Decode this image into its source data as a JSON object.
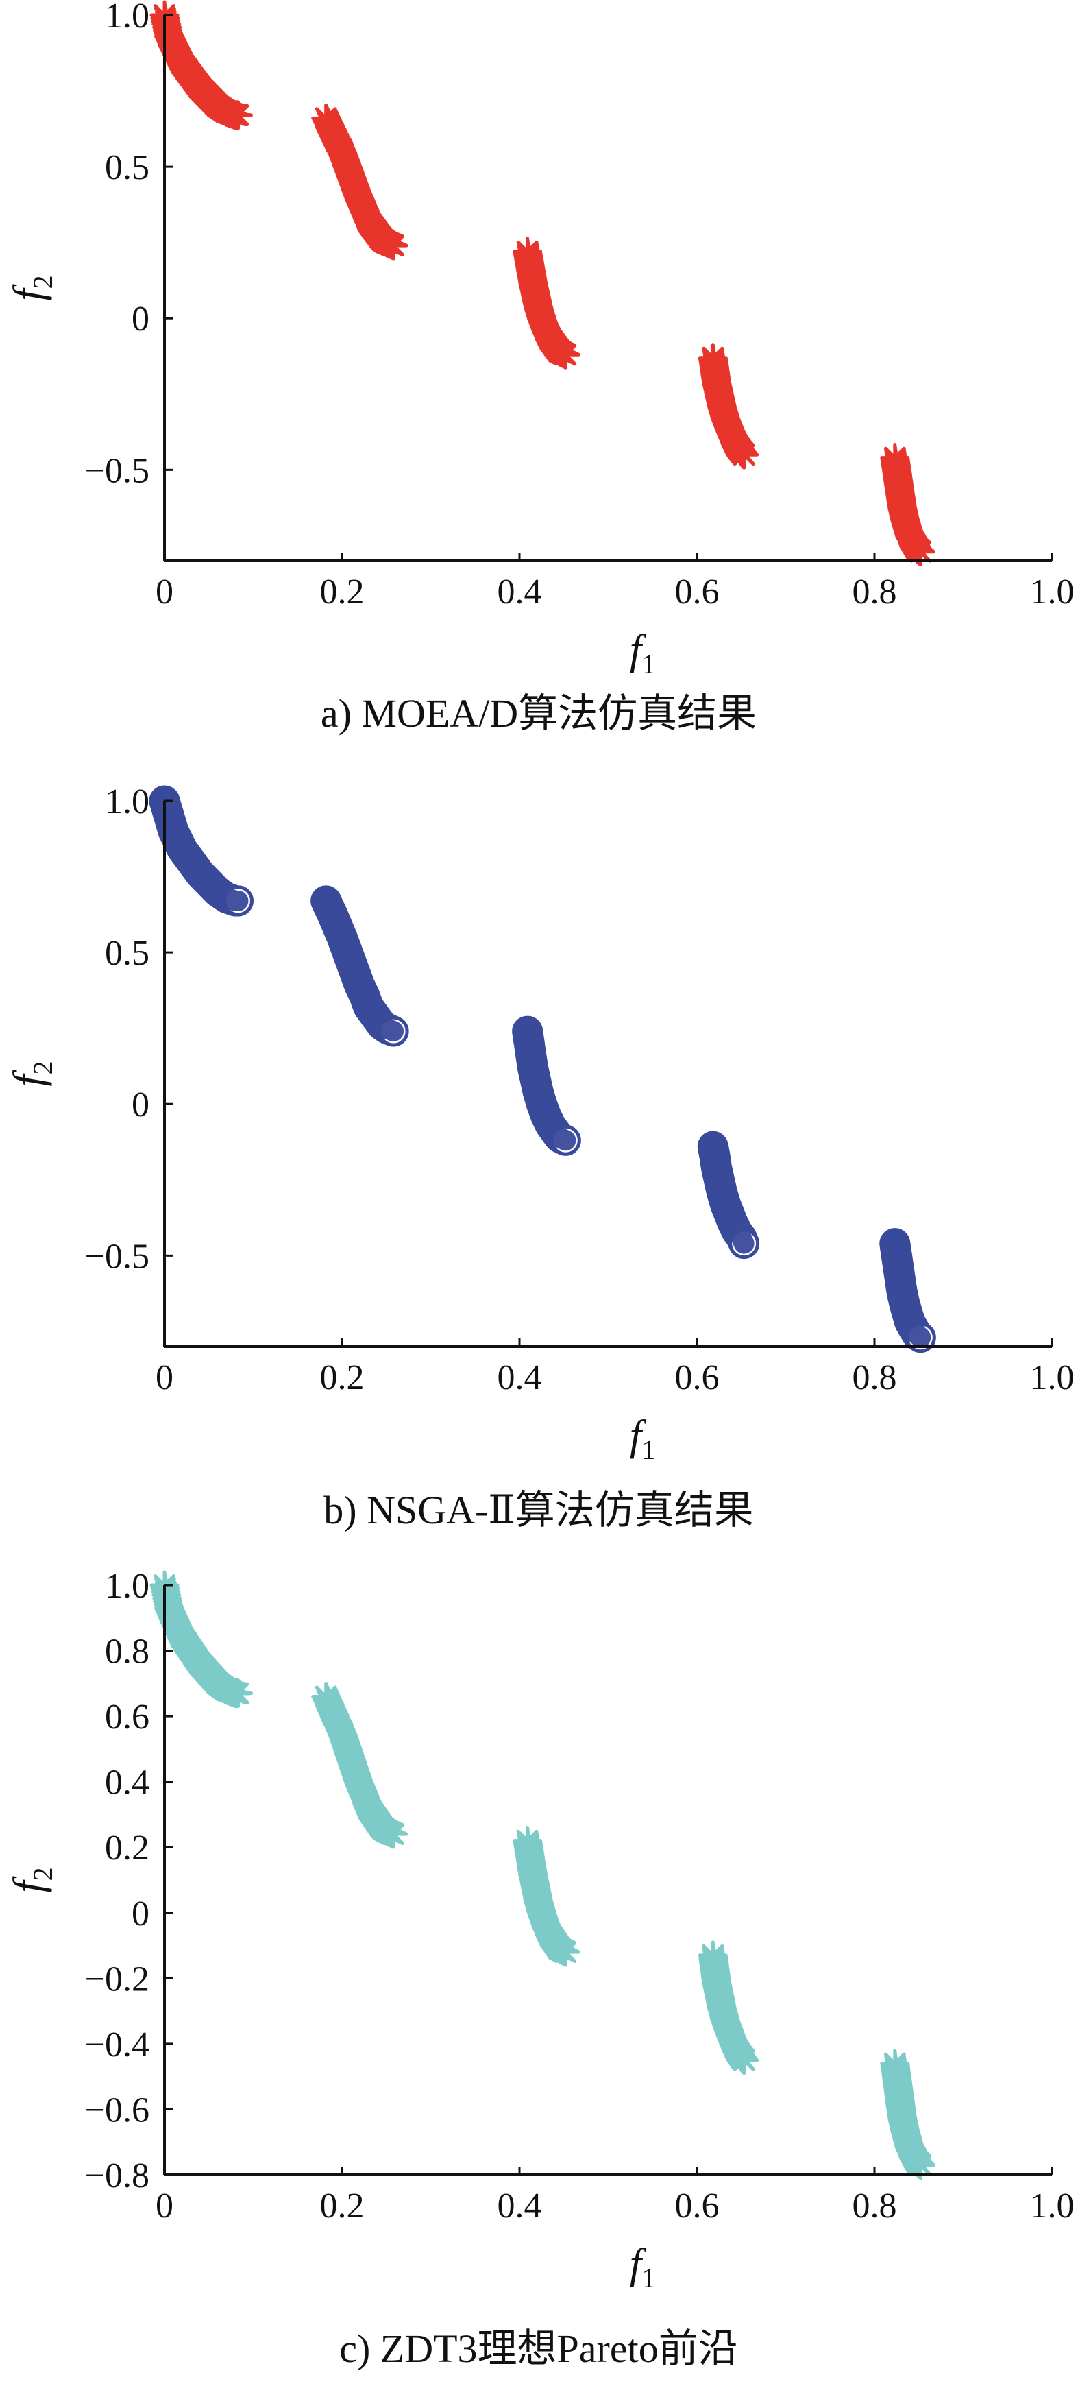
{
  "chart_data": [
    {
      "type": "scatter",
      "caption": "a) MOEA/D算法仿真结果",
      "xlabel": "f1",
      "ylabel": "f2",
      "xlim": [
        0,
        1.0
      ],
      "ylim": [
        -0.8,
        1.0
      ],
      "x_ticks": [
        "0",
        "0.2",
        "0.4",
        "0.6",
        "0.8",
        "1.0"
      ],
      "y_ticks": [
        "1.0",
        "0.5",
        "0",
        "−0.5"
      ],
      "y_tick_values": [
        1.0,
        0.5,
        0,
        -0.5
      ],
      "marker": "asterisk",
      "color": "#e8352b",
      "grid": false,
      "series": [
        {
          "x": [
            0.0,
            0.005,
            0.01,
            0.015,
            0.02,
            0.03,
            0.04,
            0.05,
            0.06,
            0.07,
            0.08,
            0.083
          ],
          "y": [
            1.0,
            0.93,
            0.9,
            0.87,
            0.84,
            0.8,
            0.76,
            0.73,
            0.7,
            0.68,
            0.67,
            0.67
          ]
        },
        {
          "x": [
            0.182,
            0.19,
            0.2,
            0.205,
            0.21,
            0.215,
            0.22,
            0.225,
            0.23,
            0.235,
            0.24,
            0.245,
            0.25,
            0.258
          ],
          "y": [
            0.66,
            0.61,
            0.55,
            0.51,
            0.47,
            0.43,
            0.39,
            0.36,
            0.32,
            0.3,
            0.28,
            0.26,
            0.25,
            0.24
          ]
        },
        {
          "x": [
            0.409,
            0.412,
            0.415,
            0.418,
            0.421,
            0.425,
            0.43,
            0.435,
            0.44,
            0.445,
            0.452
          ],
          "y": [
            0.22,
            0.17,
            0.12,
            0.08,
            0.04,
            0.0,
            -0.04,
            -0.07,
            -0.09,
            -0.11,
            -0.12
          ]
        },
        {
          "x": [
            0.618,
            0.62,
            0.622,
            0.625,
            0.628,
            0.632,
            0.636,
            0.64,
            0.645,
            0.65,
            0.653
          ],
          "y": [
            -0.13,
            -0.17,
            -0.21,
            -0.25,
            -0.29,
            -0.33,
            -0.36,
            -0.39,
            -0.42,
            -0.44,
            -0.45
          ]
        },
        {
          "x": [
            0.823,
            0.825,
            0.827,
            0.829,
            0.831,
            0.834,
            0.837,
            0.84,
            0.844,
            0.848,
            0.852
          ],
          "y": [
            -0.46,
            -0.5,
            -0.54,
            -0.58,
            -0.62,
            -0.66,
            -0.69,
            -0.72,
            -0.74,
            -0.76,
            -0.77
          ]
        }
      ]
    },
    {
      "type": "scatter",
      "caption": "b) NSGA-Ⅱ算法仿真结果",
      "xlabel": "f1",
      "ylabel": "f2",
      "xlim": [
        0,
        1.0
      ],
      "ylim": [
        -0.8,
        1.0
      ],
      "x_ticks": [
        "0",
        "0.2",
        "0.4",
        "0.6",
        "0.8",
        "1.0"
      ],
      "y_ticks": [
        "1.0",
        "0.5",
        "0",
        "−0.5"
      ],
      "y_tick_values": [
        1.0,
        0.5,
        0,
        -0.5
      ],
      "marker": "circle",
      "color": "#3a4a9a",
      "grid": false,
      "series": [
        {
          "x": [
            0.0,
            0.005,
            0.01,
            0.015,
            0.02,
            0.03,
            0.04,
            0.05,
            0.06,
            0.07,
            0.08,
            0.083
          ],
          "y": [
            1.0,
            0.95,
            0.9,
            0.87,
            0.84,
            0.8,
            0.76,
            0.73,
            0.7,
            0.68,
            0.67,
            0.67
          ]
        },
        {
          "x": [
            0.182,
            0.19,
            0.2,
            0.205,
            0.21,
            0.215,
            0.22,
            0.225,
            0.23,
            0.235,
            0.24,
            0.245,
            0.25,
            0.258
          ],
          "y": [
            0.67,
            0.62,
            0.55,
            0.51,
            0.47,
            0.43,
            0.39,
            0.36,
            0.32,
            0.3,
            0.28,
            0.26,
            0.25,
            0.24
          ]
        },
        {
          "x": [
            0.409,
            0.412,
            0.415,
            0.418,
            0.421,
            0.425,
            0.43,
            0.435,
            0.44,
            0.445,
            0.452
          ],
          "y": [
            0.24,
            0.18,
            0.12,
            0.08,
            0.04,
            0.0,
            -0.04,
            -0.07,
            -0.09,
            -0.11,
            -0.12
          ]
        },
        {
          "x": [
            0.618,
            0.62,
            0.622,
            0.625,
            0.628,
            0.632,
            0.636,
            0.64,
            0.645,
            0.65,
            0.653
          ],
          "y": [
            -0.14,
            -0.17,
            -0.21,
            -0.25,
            -0.29,
            -0.33,
            -0.36,
            -0.39,
            -0.42,
            -0.44,
            -0.46
          ]
        },
        {
          "x": [
            0.823,
            0.825,
            0.827,
            0.829,
            0.831,
            0.834,
            0.837,
            0.84,
            0.844,
            0.848,
            0.852
          ],
          "y": [
            -0.46,
            -0.5,
            -0.54,
            -0.58,
            -0.62,
            -0.66,
            -0.69,
            -0.72,
            -0.74,
            -0.76,
            -0.77
          ]
        }
      ]
    },
    {
      "type": "scatter",
      "caption": "c) ZDT3理想Pareto前沿",
      "xlabel": "f1",
      "ylabel": "f2",
      "xlim": [
        0,
        1.0
      ],
      "ylim": [
        -0.8,
        1.0
      ],
      "x_ticks": [
        "0",
        "0.2",
        "0.4",
        "0.6",
        "0.8",
        "1.0"
      ],
      "y_ticks": [
        "1.0",
        "0.8",
        "0.6",
        "0.4",
        "0.2",
        "0",
        "−0.2",
        "−0.4",
        "−0.6",
        "−0.8"
      ],
      "y_tick_values": [
        1.0,
        0.8,
        0.6,
        0.4,
        0.2,
        0,
        -0.2,
        -0.4,
        -0.6,
        -0.8
      ],
      "marker": "asterisk",
      "color": "#7ccbc8",
      "grid": false,
      "series": [
        {
          "x": [
            0.0,
            0.005,
            0.01,
            0.015,
            0.02,
            0.03,
            0.04,
            0.05,
            0.06,
            0.07,
            0.08,
            0.083
          ],
          "y": [
            1.0,
            0.93,
            0.9,
            0.87,
            0.84,
            0.8,
            0.76,
            0.73,
            0.7,
            0.68,
            0.67,
            0.67
          ]
        },
        {
          "x": [
            0.182,
            0.19,
            0.2,
            0.205,
            0.21,
            0.215,
            0.22,
            0.225,
            0.23,
            0.235,
            0.24,
            0.245,
            0.25,
            0.258
          ],
          "y": [
            0.66,
            0.61,
            0.55,
            0.51,
            0.47,
            0.43,
            0.39,
            0.36,
            0.32,
            0.3,
            0.28,
            0.26,
            0.25,
            0.24
          ]
        },
        {
          "x": [
            0.409,
            0.412,
            0.415,
            0.418,
            0.421,
            0.425,
            0.43,
            0.435,
            0.44,
            0.445,
            0.452
          ],
          "y": [
            0.22,
            0.17,
            0.12,
            0.08,
            0.04,
            0.0,
            -0.04,
            -0.07,
            -0.09,
            -0.11,
            -0.12
          ]
        },
        {
          "x": [
            0.618,
            0.62,
            0.622,
            0.625,
            0.628,
            0.632,
            0.636,
            0.64,
            0.645,
            0.65,
            0.653
          ],
          "y": [
            -0.13,
            -0.17,
            -0.21,
            -0.25,
            -0.29,
            -0.33,
            -0.36,
            -0.39,
            -0.42,
            -0.44,
            -0.45
          ]
        },
        {
          "x": [
            0.823,
            0.825,
            0.827,
            0.829,
            0.831,
            0.834,
            0.837,
            0.84,
            0.844,
            0.848,
            0.852
          ],
          "y": [
            -0.46,
            -0.5,
            -0.54,
            -0.58,
            -0.62,
            -0.66,
            -0.69,
            -0.72,
            -0.74,
            -0.76,
            -0.77
          ]
        }
      ]
    }
  ]
}
